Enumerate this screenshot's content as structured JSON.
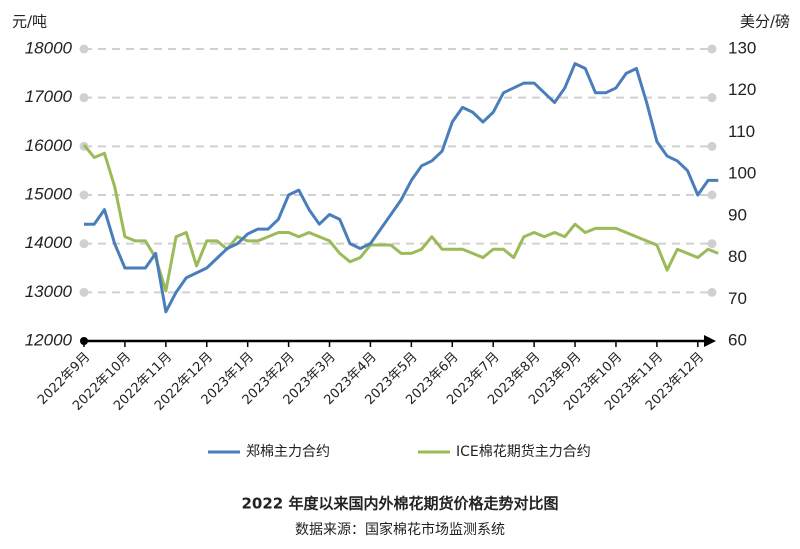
{
  "chart_data": {
    "type": "line",
    "title": "2022 年度以来国内外棉花期货价格走势对比图",
    "subtitle": "数据来源：国家棉花市场监测系统",
    "y_label": "元/吨",
    "y2_label": "美分/磅",
    "categories": [
      "2022年9月",
      null,
      null,
      null,
      "2022年10月",
      null,
      null,
      null,
      "2022年11月",
      null,
      null,
      null,
      "2022年12月",
      null,
      null,
      null,
      "2023年1月",
      null,
      null,
      null,
      "2023年2月",
      null,
      null,
      null,
      "2023年3月",
      null,
      null,
      null,
      "2023年4月",
      null,
      null,
      null,
      "2023年5月",
      null,
      null,
      null,
      "2023年6月",
      null,
      null,
      null,
      "2023年7月",
      null,
      null,
      null,
      "2023年8月",
      null,
      null,
      null,
      "2023年9月",
      null,
      null,
      null,
      "2023年10月",
      null,
      null,
      null,
      "2023年11月",
      null,
      null,
      null,
      "2023年12月",
      null,
      null
    ],
    "series": [
      {
        "name": "郑棉主力合约",
        "color": "#4a7ebb",
        "axis": "y",
        "values": [
          14400,
          14400,
          14700,
          14000,
          13500,
          13500,
          13500,
          13800,
          12600,
          13000,
          13300,
          13400,
          13500,
          13700,
          13900,
          14000,
          14200,
          14300,
          14300,
          14500,
          15000,
          15100,
          14700,
          14400,
          14600,
          14500,
          14000,
          13900,
          14000,
          14300,
          14600,
          14900,
          15300,
          15600,
          15700,
          15900,
          16500,
          16800,
          16700,
          16500,
          16700,
          17100,
          17200,
          17300,
          17300,
          17100,
          16900,
          17200,
          17700,
          17600,
          17100,
          17100,
          17200,
          17500,
          17600,
          16900,
          16100,
          15800,
          15700,
          15500,
          15000,
          15300,
          15300
        ]
      },
      {
        "name": "ICE棉花期货主力合约",
        "color": "#9bbb59",
        "axis": "y2",
        "values": [
          107,
          104,
          105,
          97,
          85,
          84,
          84,
          80,
          72,
          85,
          86,
          78,
          84,
          84,
          82,
          85,
          84,
          84,
          85,
          86,
          86,
          85,
          86,
          85,
          84,
          81,
          79,
          80,
          83,
          83,
          83,
          81,
          81,
          82,
          85,
          82,
          82,
          82,
          81,
          80,
          82,
          82,
          80,
          85,
          86,
          85,
          86,
          85,
          88,
          86,
          87,
          87,
          87,
          86,
          85,
          84,
          83,
          77,
          82,
          81,
          80,
          82,
          81
        ]
      }
    ],
    "ylim": [
      12000,
      18000
    ],
    "yticks": [
      12000,
      13000,
      14000,
      15000,
      16000,
      17000,
      18000
    ],
    "y2lim": [
      60,
      130
    ],
    "y2ticks": [
      60,
      70,
      80,
      90,
      100,
      110,
      120,
      130
    ],
    "grid": true,
    "legend": "bottom"
  }
}
